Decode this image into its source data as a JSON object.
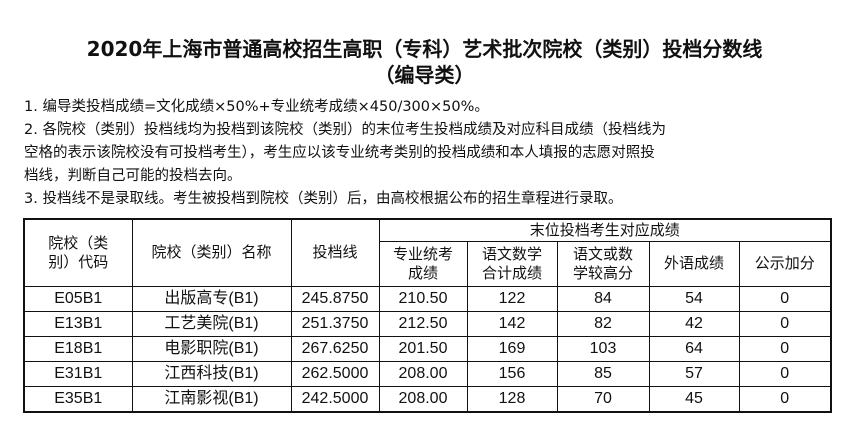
{
  "title": {
    "line1": "2020年上海市普通高校招生高职（专科）艺术批次院校（类别）投档分数线",
    "line2": "（编导类）"
  },
  "notes": [
    "1. 编导类投档成绩=文化成绩×50%+专业统考成绩×450/300×50%。",
    "2. 各院校（类别）投档线均为投档到该院校（类别）的末位考生投档成绩及对应科目成绩（投档线为",
    "空格的表示该院校没有可投档考生），考生应以该专业统考类别的投档成绩和本人填报的志愿对照投",
    "档线，判断自己可能的投档去向。",
    "3. 投档线不是录取线。考生被投档到院校（类别）后，由高校根据公布的招生章程进行录取。"
  ],
  "table": {
    "headers": {
      "code": "院校（类别）代码",
      "name": "院校（类别）名称",
      "line": "投档线",
      "group": "末位投档考生对应成绩",
      "sub": [
        "专业统考成绩",
        "语文数学合计成绩",
        "语文或数学较高分",
        "外语成绩",
        "公示加分"
      ]
    },
    "rows": [
      [
        "E05B1",
        "出版高专(B1)",
        "245.8750",
        "210.50",
        "122",
        "84",
        "54",
        "0"
      ],
      [
        "E13B1",
        "工艺美院(B1)",
        "251.3750",
        "212.50",
        "142",
        "82",
        "42",
        "0"
      ],
      [
        "E18B1",
        "电影职院(B1)",
        "267.6250",
        "201.50",
        "169",
        "103",
        "64",
        "0"
      ],
      [
        "E31B1",
        "江西科技(B1)",
        "262.5000",
        "208.00",
        "156",
        "85",
        "57",
        "0"
      ],
      [
        "E35B1",
        "江南影视(B1)",
        "242.5000",
        "208.00",
        "128",
        "70",
        "45",
        "0"
      ]
    ]
  }
}
